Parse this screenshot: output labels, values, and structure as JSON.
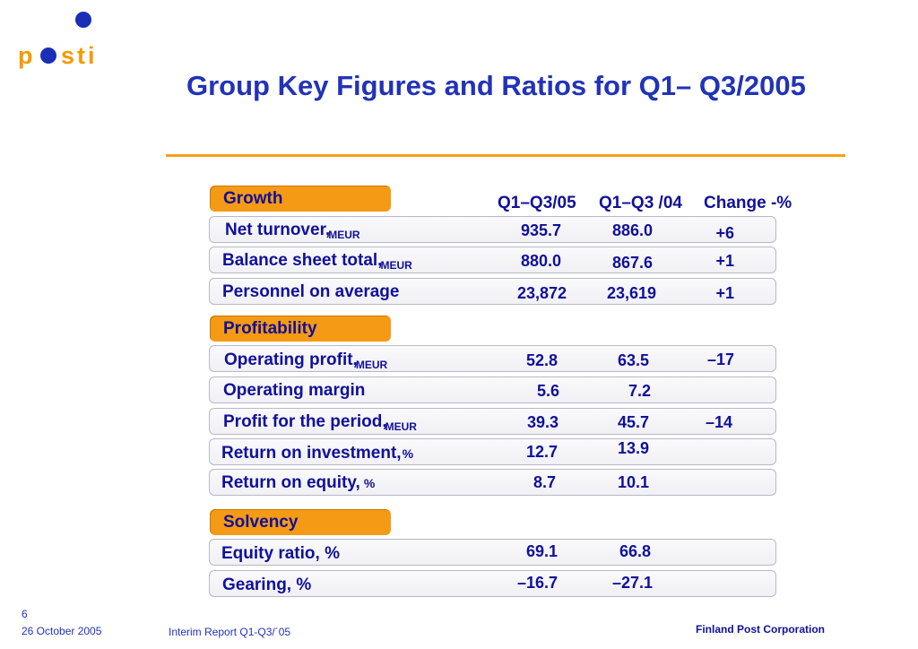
{
  "logo": {
    "text": "posti",
    "color": "#f59a00",
    "dot_color": "#1a2fb5"
  },
  "slide_title": "Group Key Figures and Ratios for Q1– Q3/2005",
  "columns": {
    "q105": "Q1–Q3/05",
    "q104": "Q1–Q3 /04",
    "change": "Change -%"
  },
  "sections": {
    "growth": "Growth",
    "profitability": "Profitability",
    "solvency": "Solvency"
  },
  "rows": [
    {
      "label": "Net turnover,",
      "unit": "MEUR",
      "q105": "935.7",
      "q104": "886.0",
      "change": "+6"
    },
    {
      "label": "Balance sheet total,",
      "unit": "MEUR",
      "q105": "880.0",
      "q104": "867.6",
      "change": "+1"
    },
    {
      "label": "Personnel on average",
      "unit": "",
      "q105": "23,872",
      "q104": "23,619",
      "change": "+1"
    },
    {
      "label": "Operating profit,",
      "unit": "MEUR",
      "q105": "52.8",
      "q104": "63.5",
      "change": "–17"
    },
    {
      "label": "Operating margin",
      "unit": "",
      "q105": "5.6",
      "q104": "7.2",
      "change": ""
    },
    {
      "label": "Profit for the period,",
      "unit": "MEUR",
      "q105": "39.3",
      "q104": "45.7",
      "change": "–14"
    },
    {
      "label": "Return on investment,",
      "unit": "%",
      "q105": "12.7",
      "q104": "13.9",
      "change": ""
    },
    {
      "label": "Return on equity,",
      "unit": "%",
      "q105": "8.7",
      "q104": "10.1",
      "change": ""
    },
    {
      "label": "Equity ratio, %",
      "unit": "",
      "q105": "69.1",
      "q104": "66.8",
      "change": ""
    },
    {
      "label": "Gearing, %",
      "unit": "",
      "q105": "–16.7",
      "q104": "–27.1",
      "change": ""
    }
  ],
  "footer": {
    "page_number": "6",
    "date": "26 October 2005",
    "report": "Interim Report Q1-Q3/´05",
    "company": "Finland Post Corporation"
  },
  "colors": {
    "accent_orange": "#f59a14",
    "text_blue": "#10109a",
    "title_blue": "#2233b8"
  }
}
